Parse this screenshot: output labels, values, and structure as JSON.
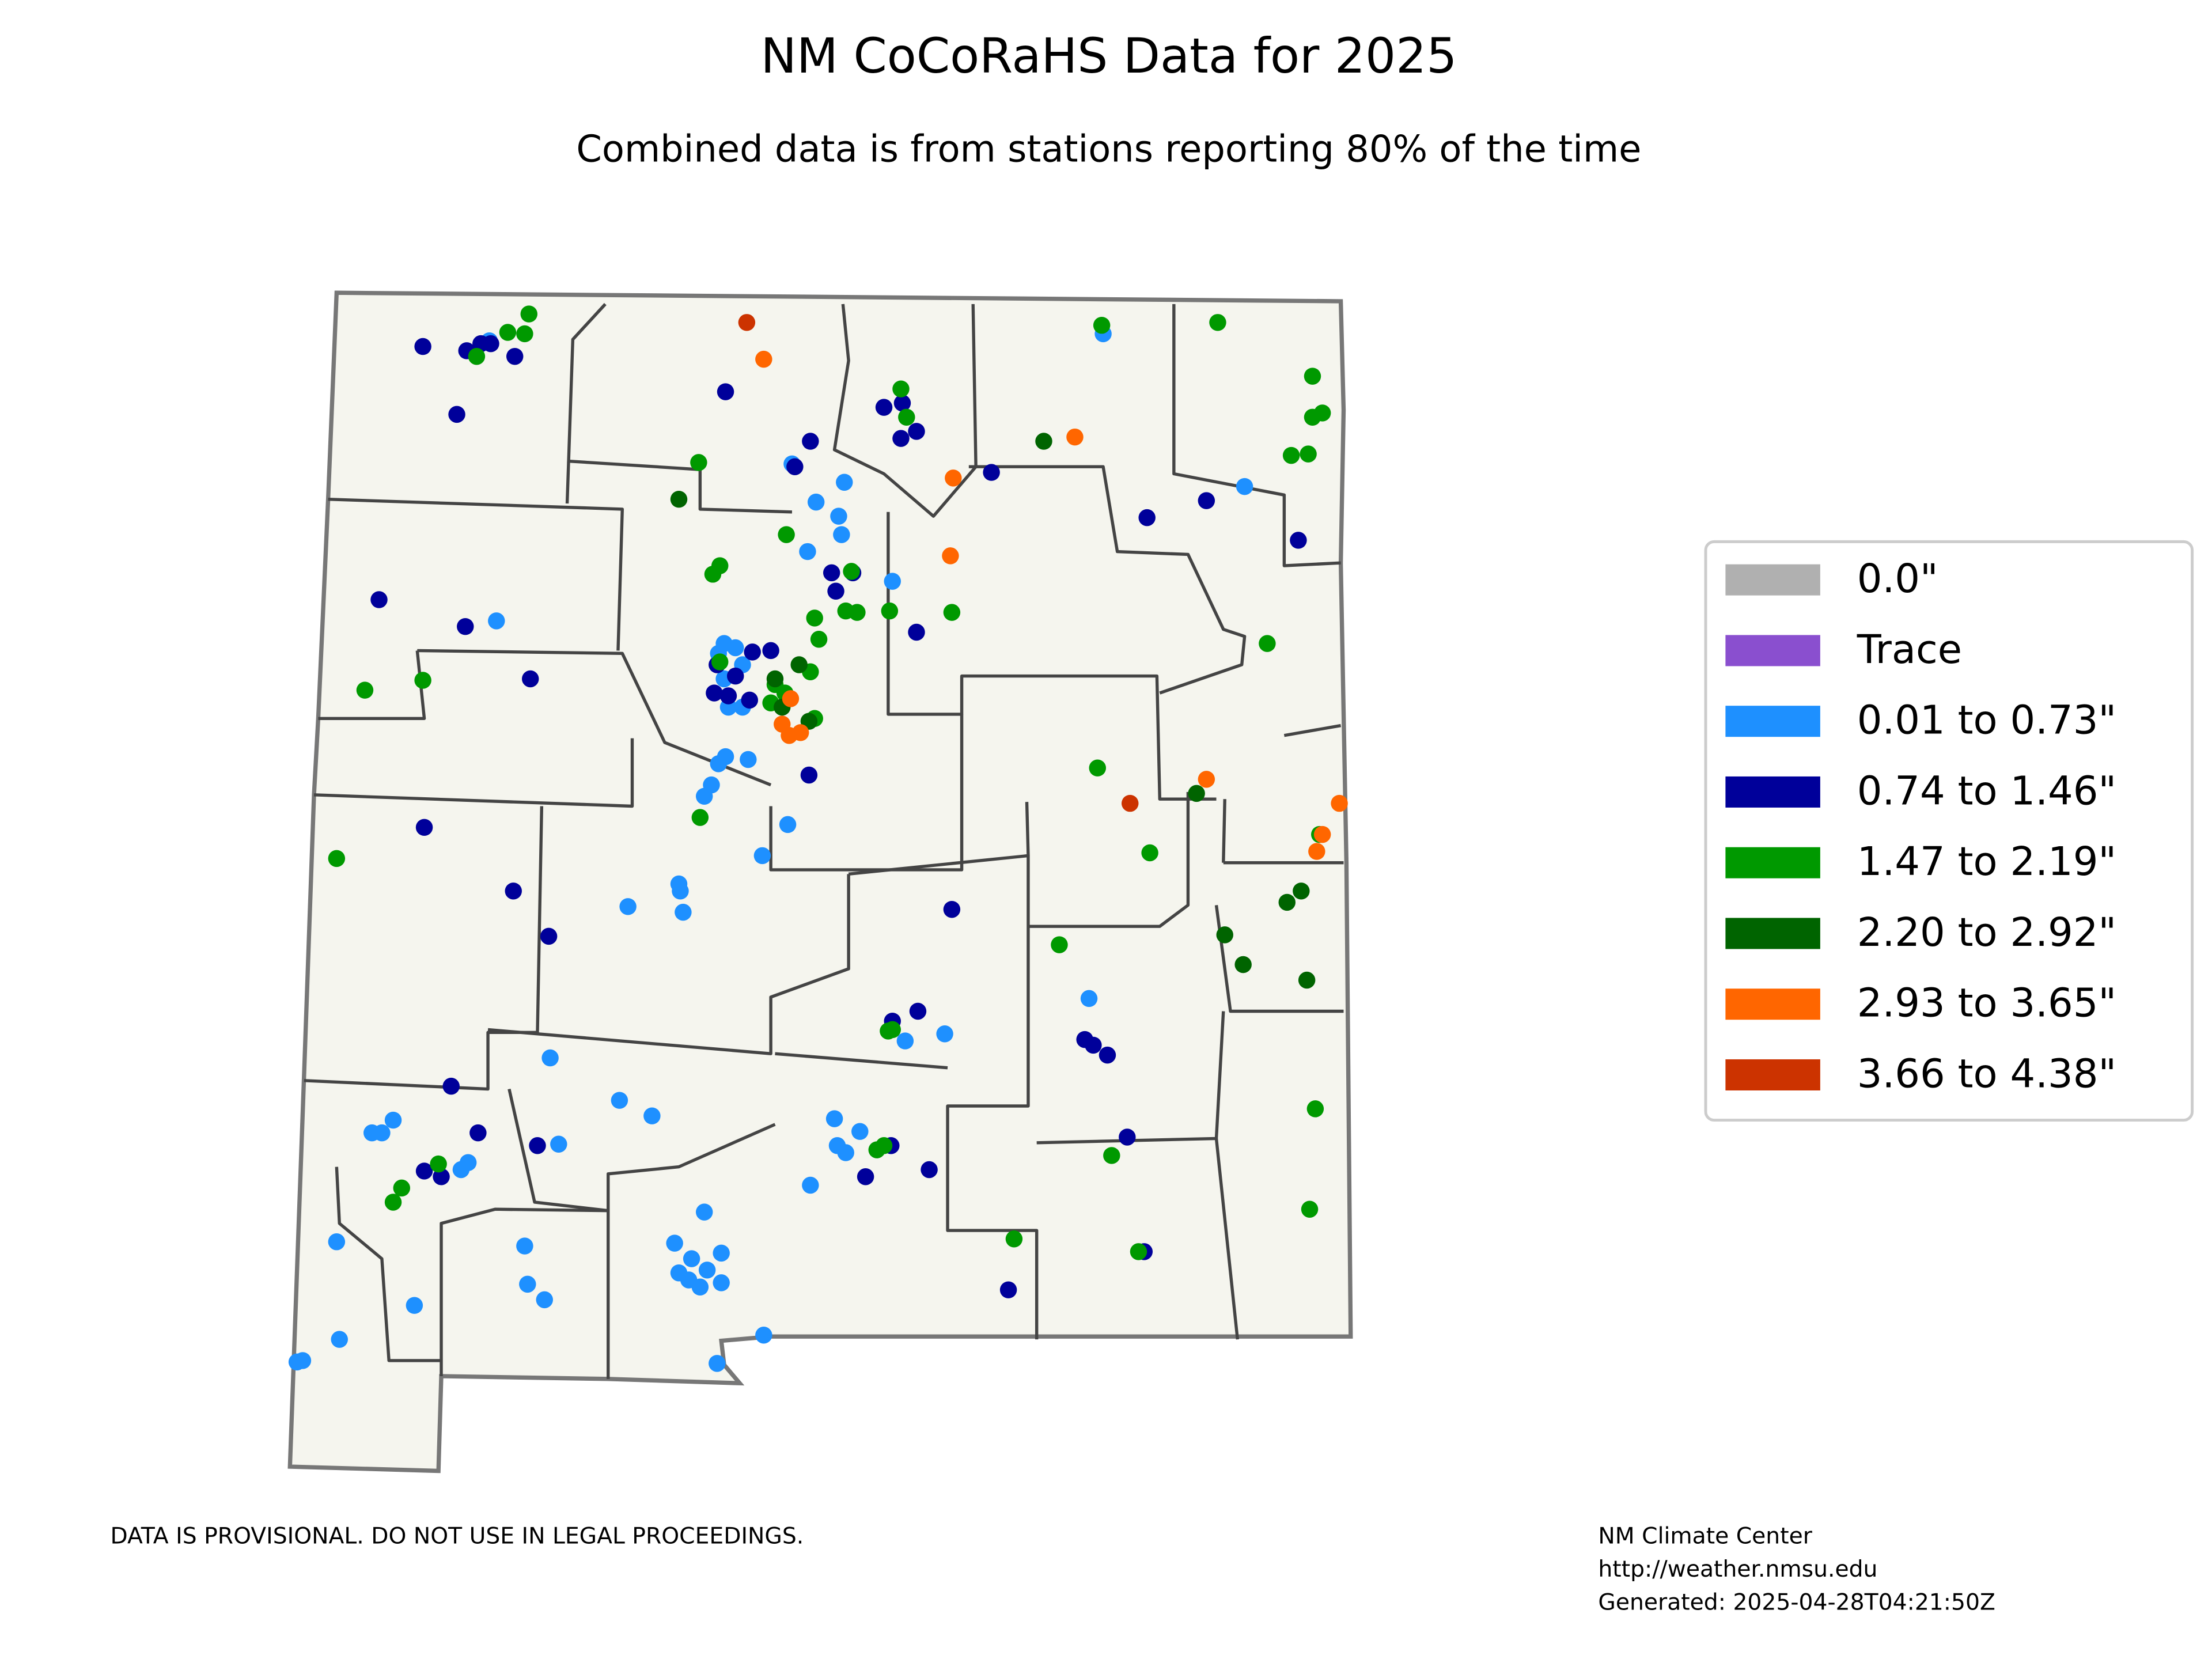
{
  "header": {
    "title": "NM CoCoRaHS Data for 2025",
    "subtitle": "Combined data is from stations reporting 80% of the time"
  },
  "legend": [
    {
      "label": "0.0\"",
      "color": "#b0b0b0"
    },
    {
      "label": "Trace",
      "color": "#8a4fcf"
    },
    {
      "label": "0.01 to 0.73\"",
      "color": "#1e90ff"
    },
    {
      "label": "0.74 to 1.46\"",
      "color": "#00009a"
    },
    {
      "label": "1.47 to 2.19\"",
      "color": "#009900"
    },
    {
      "label": "2.20 to 2.92\"",
      "color": "#006400"
    },
    {
      "label": "2.93 to 3.65\"",
      "color": "#ff6600"
    },
    {
      "label": "3.66 to 4.38\"",
      "color": "#cc3300"
    }
  ],
  "footer": {
    "disclaimer": "DATA IS PROVISIONAL. DO NOT USE IN LEGAL PROCEEDINGS.",
    "credits": [
      "NM Climate Center",
      "http://weather.nmsu.edu",
      "Generated: 2025-04-28T04:21:50Z"
    ]
  }
}
